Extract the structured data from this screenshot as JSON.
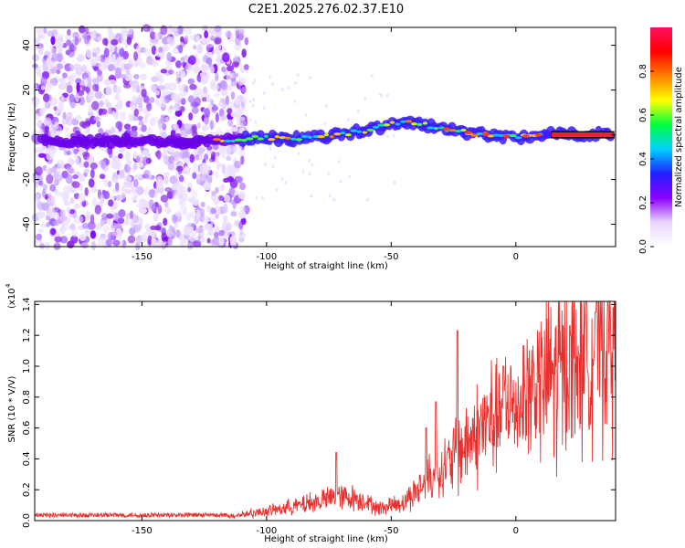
{
  "title": "C2E1.2025.276.02.37.E10",
  "chart_data": [
    {
      "type": "heatmap",
      "name": "spectrogram",
      "xlabel": "Height of straight line (km)",
      "ylabel": "Frequency (Hz)",
      "xlim": [
        -193,
        40
      ],
      "ylim": [
        -50,
        48
      ],
      "xticks": [
        -150,
        -100,
        -50,
        0
      ],
      "yticks": [
        -40,
        -20,
        0,
        20,
        40
      ],
      "ridge": [
        {
          "x": -190,
          "y": -3
        },
        {
          "x": -170,
          "y": -3
        },
        {
          "x": -150,
          "y": -3
        },
        {
          "x": -130,
          "y": -3
        },
        {
          "x": -115,
          "y": -2
        },
        {
          "x": -100,
          "y": -1
        },
        {
          "x": -90,
          "y": -2
        },
        {
          "x": -80,
          "y": -1
        },
        {
          "x": -70,
          "y": 0
        },
        {
          "x": -60,
          "y": 2
        },
        {
          "x": -50,
          "y": 5
        },
        {
          "x": -45,
          "y": 6
        },
        {
          "x": -40,
          "y": 5
        },
        {
          "x": -30,
          "y": 3
        },
        {
          "x": -20,
          "y": 1
        },
        {
          "x": -10,
          "y": 0
        },
        {
          "x": 0,
          "y": -1
        },
        {
          "x": 10,
          "y": 0
        },
        {
          "x": 20,
          "y": 0
        },
        {
          "x": 40,
          "y": 0
        }
      ],
      "colorbar": {
        "label": "Normalized spectral amplitude",
        "range": [
          0,
          1
        ],
        "ticks": [
          "0.0",
          "0.2",
          "0.4",
          "0.6",
          "0.8"
        ],
        "colors": [
          "#ffffff",
          "#e9d5ff",
          "#8b00ff",
          "#2020ff",
          "#00d0ff",
          "#00ff40",
          "#ffff00",
          "#ff8000",
          "#ff0000",
          "#ff1060"
        ]
      }
    },
    {
      "type": "line",
      "name": "snr",
      "xlabel": "Height of straight line (km)",
      "ylabel": "SNR (10 * V/V)",
      "scale_note": "(x10",
      "scale_exponent": "4",
      "xlim": [
        -193,
        40
      ],
      "ylim": [
        0,
        1.42
      ],
      "xticks": [
        -150,
        -100,
        -50,
        0
      ],
      "yticks": [
        "0.0",
        "0.2",
        "0.4",
        "0.6",
        "0.8",
        "1.0",
        "1.2",
        "1.4"
      ],
      "color": "#e8312e",
      "trend": [
        {
          "x": -193,
          "y": 0.02
        },
        {
          "x": -130,
          "y": 0.02
        },
        {
          "x": -115,
          "y": 0.03
        },
        {
          "x": -100,
          "y": 0.06
        },
        {
          "x": -90,
          "y": 0.09
        },
        {
          "x": -80,
          "y": 0.12
        },
        {
          "x": -72,
          "y": 0.16
        },
        {
          "x": -62,
          "y": 0.14
        },
        {
          "x": -55,
          "y": 0.08
        },
        {
          "x": -45,
          "y": 0.12
        },
        {
          "x": -38,
          "y": 0.22
        },
        {
          "x": -30,
          "y": 0.33
        },
        {
          "x": -20,
          "y": 0.48
        },
        {
          "x": -10,
          "y": 0.66
        },
        {
          "x": 0,
          "y": 0.75
        },
        {
          "x": 10,
          "y": 0.9
        },
        {
          "x": 20,
          "y": 1.0
        },
        {
          "x": 30,
          "y": 1.15
        },
        {
          "x": 40,
          "y": 1.25
        }
      ],
      "peaks": [
        {
          "x": -72,
          "y": 0.44
        },
        {
          "x": -36,
          "y": 0.6
        },
        {
          "x": -32,
          "y": 0.77
        },
        {
          "x": -23.5,
          "y": 1.23
        },
        {
          "x": -5,
          "y": 1.0
        },
        {
          "x": 22,
          "y": 1.2
        },
        {
          "x": 32,
          "y": 1.35
        },
        {
          "x": 39,
          "y": 1.38
        }
      ]
    }
  ]
}
